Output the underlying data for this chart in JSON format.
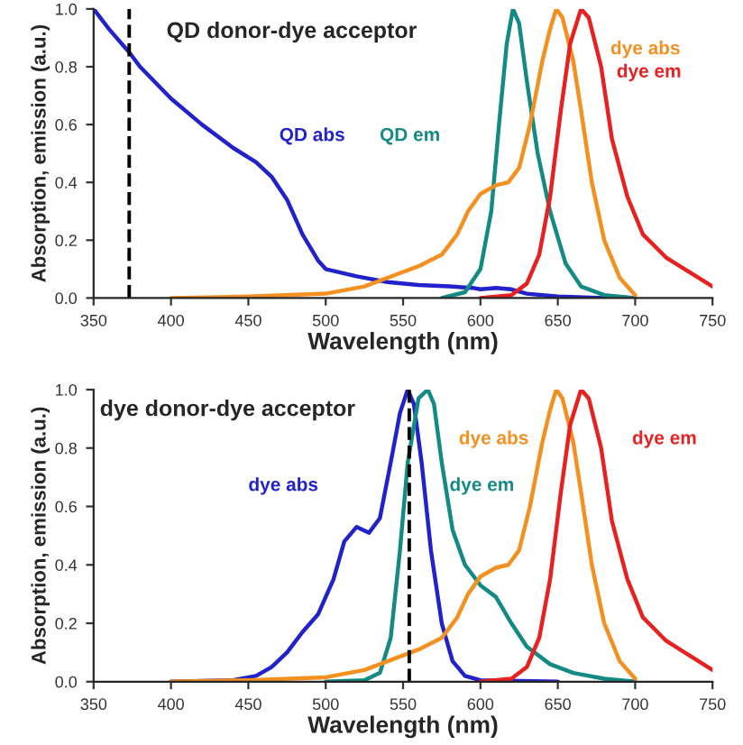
{
  "chart_data": [
    {
      "type": "line",
      "title": "QD donor-dye acceptor",
      "xlabel": "Wavelength (nm)",
      "ylabel": "Absorption, emission (a.u.)",
      "xlim": [
        350,
        750
      ],
      "xticks": [
        350,
        400,
        450,
        500,
        550,
        600,
        650,
        700,
        750
      ],
      "ylim": [
        0,
        1.0
      ],
      "yticks": [
        {
          "value": 0,
          "label": "0.0"
        },
        {
          "value": 0.2,
          "label": "0.2"
        },
        {
          "value": 0.4,
          "label": "0.4"
        },
        {
          "value": 0.6,
          "label": "0.6"
        },
        {
          "value": 0.8,
          "label": "0.8"
        },
        {
          "value": 1.0,
          "label": "1.0"
        }
      ],
      "grid": false,
      "legend": false,
      "marker": "none",
      "line_style": "solid",
      "ref_lines": [
        {
          "axis": "x",
          "value": 373,
          "color": "#000000",
          "line_style": "dashed"
        }
      ],
      "series": [
        {
          "name": "QD abs",
          "color": "#2222cc",
          "x": [
            350,
            360,
            373,
            380,
            400,
            420,
            440,
            455,
            465,
            475,
            485,
            495,
            500,
            520,
            540,
            560,
            580,
            595,
            600,
            610,
            620,
            630,
            650,
            680
          ],
          "values": [
            1.0,
            0.93,
            0.85,
            0.8,
            0.69,
            0.6,
            0.52,
            0.47,
            0.42,
            0.34,
            0.22,
            0.13,
            0.1,
            0.075,
            0.055,
            0.045,
            0.04,
            0.035,
            0.03,
            0.035,
            0.03,
            0.015,
            0.005,
            0.0
          ]
        },
        {
          "name": "QD em",
          "color": "#148a84",
          "x": [
            575,
            590,
            600,
            607,
            612,
            617,
            621,
            625,
            630,
            637,
            645,
            655,
            665,
            680,
            700
          ],
          "values": [
            0.0,
            0.02,
            0.1,
            0.3,
            0.6,
            0.88,
            1.0,
            0.95,
            0.75,
            0.5,
            0.3,
            0.12,
            0.04,
            0.01,
            0.0
          ]
        },
        {
          "name": "dye abs",
          "color": "#f39020",
          "x": [
            400,
            450,
            500,
            525,
            545,
            560,
            575,
            585,
            592,
            600,
            610,
            618,
            625,
            632,
            640,
            645,
            649,
            653,
            660,
            665,
            672,
            680,
            690,
            700
          ],
          "values": [
            0.0,
            0.005,
            0.015,
            0.04,
            0.08,
            0.11,
            0.15,
            0.22,
            0.3,
            0.36,
            0.39,
            0.4,
            0.45,
            0.6,
            0.82,
            0.93,
            1.0,
            0.97,
            0.82,
            0.65,
            0.4,
            0.2,
            0.07,
            0.01
          ]
        },
        {
          "name": "dye em",
          "color": "#e82020",
          "x": [
            600,
            620,
            630,
            638,
            645,
            652,
            658,
            665,
            670,
            678,
            685,
            695,
            705,
            720,
            735,
            750
          ],
          "values": [
            0.0,
            0.01,
            0.05,
            0.15,
            0.35,
            0.65,
            0.88,
            1.0,
            0.97,
            0.8,
            0.55,
            0.35,
            0.22,
            0.14,
            0.09,
            0.04
          ]
        }
      ]
    },
    {
      "type": "line",
      "title": "dye donor-dye acceptor",
      "xlabel": "Wavelength (nm)",
      "ylabel": "Absorption, emission (a.u.)",
      "xlim": [
        350,
        750
      ],
      "xticks": [
        350,
        400,
        450,
        500,
        550,
        600,
        650,
        700,
        750
      ],
      "ylim": [
        0,
        1.0
      ],
      "yticks": [
        {
          "value": 0,
          "label": "0.0"
        },
        {
          "value": 0.2,
          "label": "0.2"
        },
        {
          "value": 0.4,
          "label": "0.4"
        },
        {
          "value": 0.6,
          "label": "0.6"
        },
        {
          "value": 0.8,
          "label": "0.8"
        },
        {
          "value": 1.0,
          "label": "1.0"
        }
      ],
      "grid": false,
      "legend": false,
      "marker": "none",
      "line_style": "solid",
      "ref_lines": [
        {
          "axis": "x",
          "value": 554,
          "color": "#000000",
          "line_style": "dashed"
        }
      ],
      "series": [
        {
          "name": "dye abs",
          "color": "#2222cc",
          "x": [
            400,
            440,
            455,
            465,
            475,
            485,
            495,
            505,
            512,
            520,
            528,
            535,
            542,
            548,
            553,
            557,
            562,
            568,
            575,
            582,
            590,
            600,
            650
          ],
          "values": [
            0.0,
            0.005,
            0.02,
            0.05,
            0.1,
            0.17,
            0.23,
            0.35,
            0.48,
            0.53,
            0.51,
            0.56,
            0.75,
            0.92,
            1.0,
            0.95,
            0.75,
            0.45,
            0.2,
            0.07,
            0.02,
            0.005,
            0.0
          ]
        },
        {
          "name": "dye em",
          "color": "#148a84",
          "x": [
            500,
            525,
            535,
            542,
            548,
            553,
            560,
            566,
            570,
            575,
            582,
            590,
            600,
            610,
            620,
            630,
            645,
            660,
            680,
            700
          ],
          "values": [
            0.0,
            0.005,
            0.03,
            0.15,
            0.45,
            0.75,
            0.97,
            1.0,
            0.95,
            0.75,
            0.52,
            0.4,
            0.33,
            0.29,
            0.2,
            0.12,
            0.06,
            0.03,
            0.01,
            0.0
          ]
        },
        {
          "name": "dye abs",
          "color": "#f39020",
          "x": [
            400,
            450,
            500,
            525,
            545,
            560,
            575,
            585,
            592,
            600,
            610,
            618,
            625,
            632,
            640,
            645,
            649,
            653,
            660,
            665,
            672,
            680,
            690,
            700
          ],
          "values": [
            0.0,
            0.005,
            0.015,
            0.04,
            0.08,
            0.11,
            0.15,
            0.22,
            0.3,
            0.36,
            0.39,
            0.4,
            0.45,
            0.6,
            0.82,
            0.93,
            1.0,
            0.97,
            0.82,
            0.65,
            0.4,
            0.2,
            0.07,
            0.01
          ]
        },
        {
          "name": "dye em",
          "color": "#e82020",
          "x": [
            600,
            620,
            630,
            638,
            645,
            652,
            658,
            665,
            670,
            678,
            685,
            695,
            705,
            720,
            735,
            750
          ],
          "values": [
            0.0,
            0.01,
            0.05,
            0.15,
            0.35,
            0.65,
            0.88,
            1.0,
            0.97,
            0.8,
            0.55,
            0.35,
            0.22,
            0.14,
            0.09,
            0.04
          ]
        }
      ]
    }
  ]
}
